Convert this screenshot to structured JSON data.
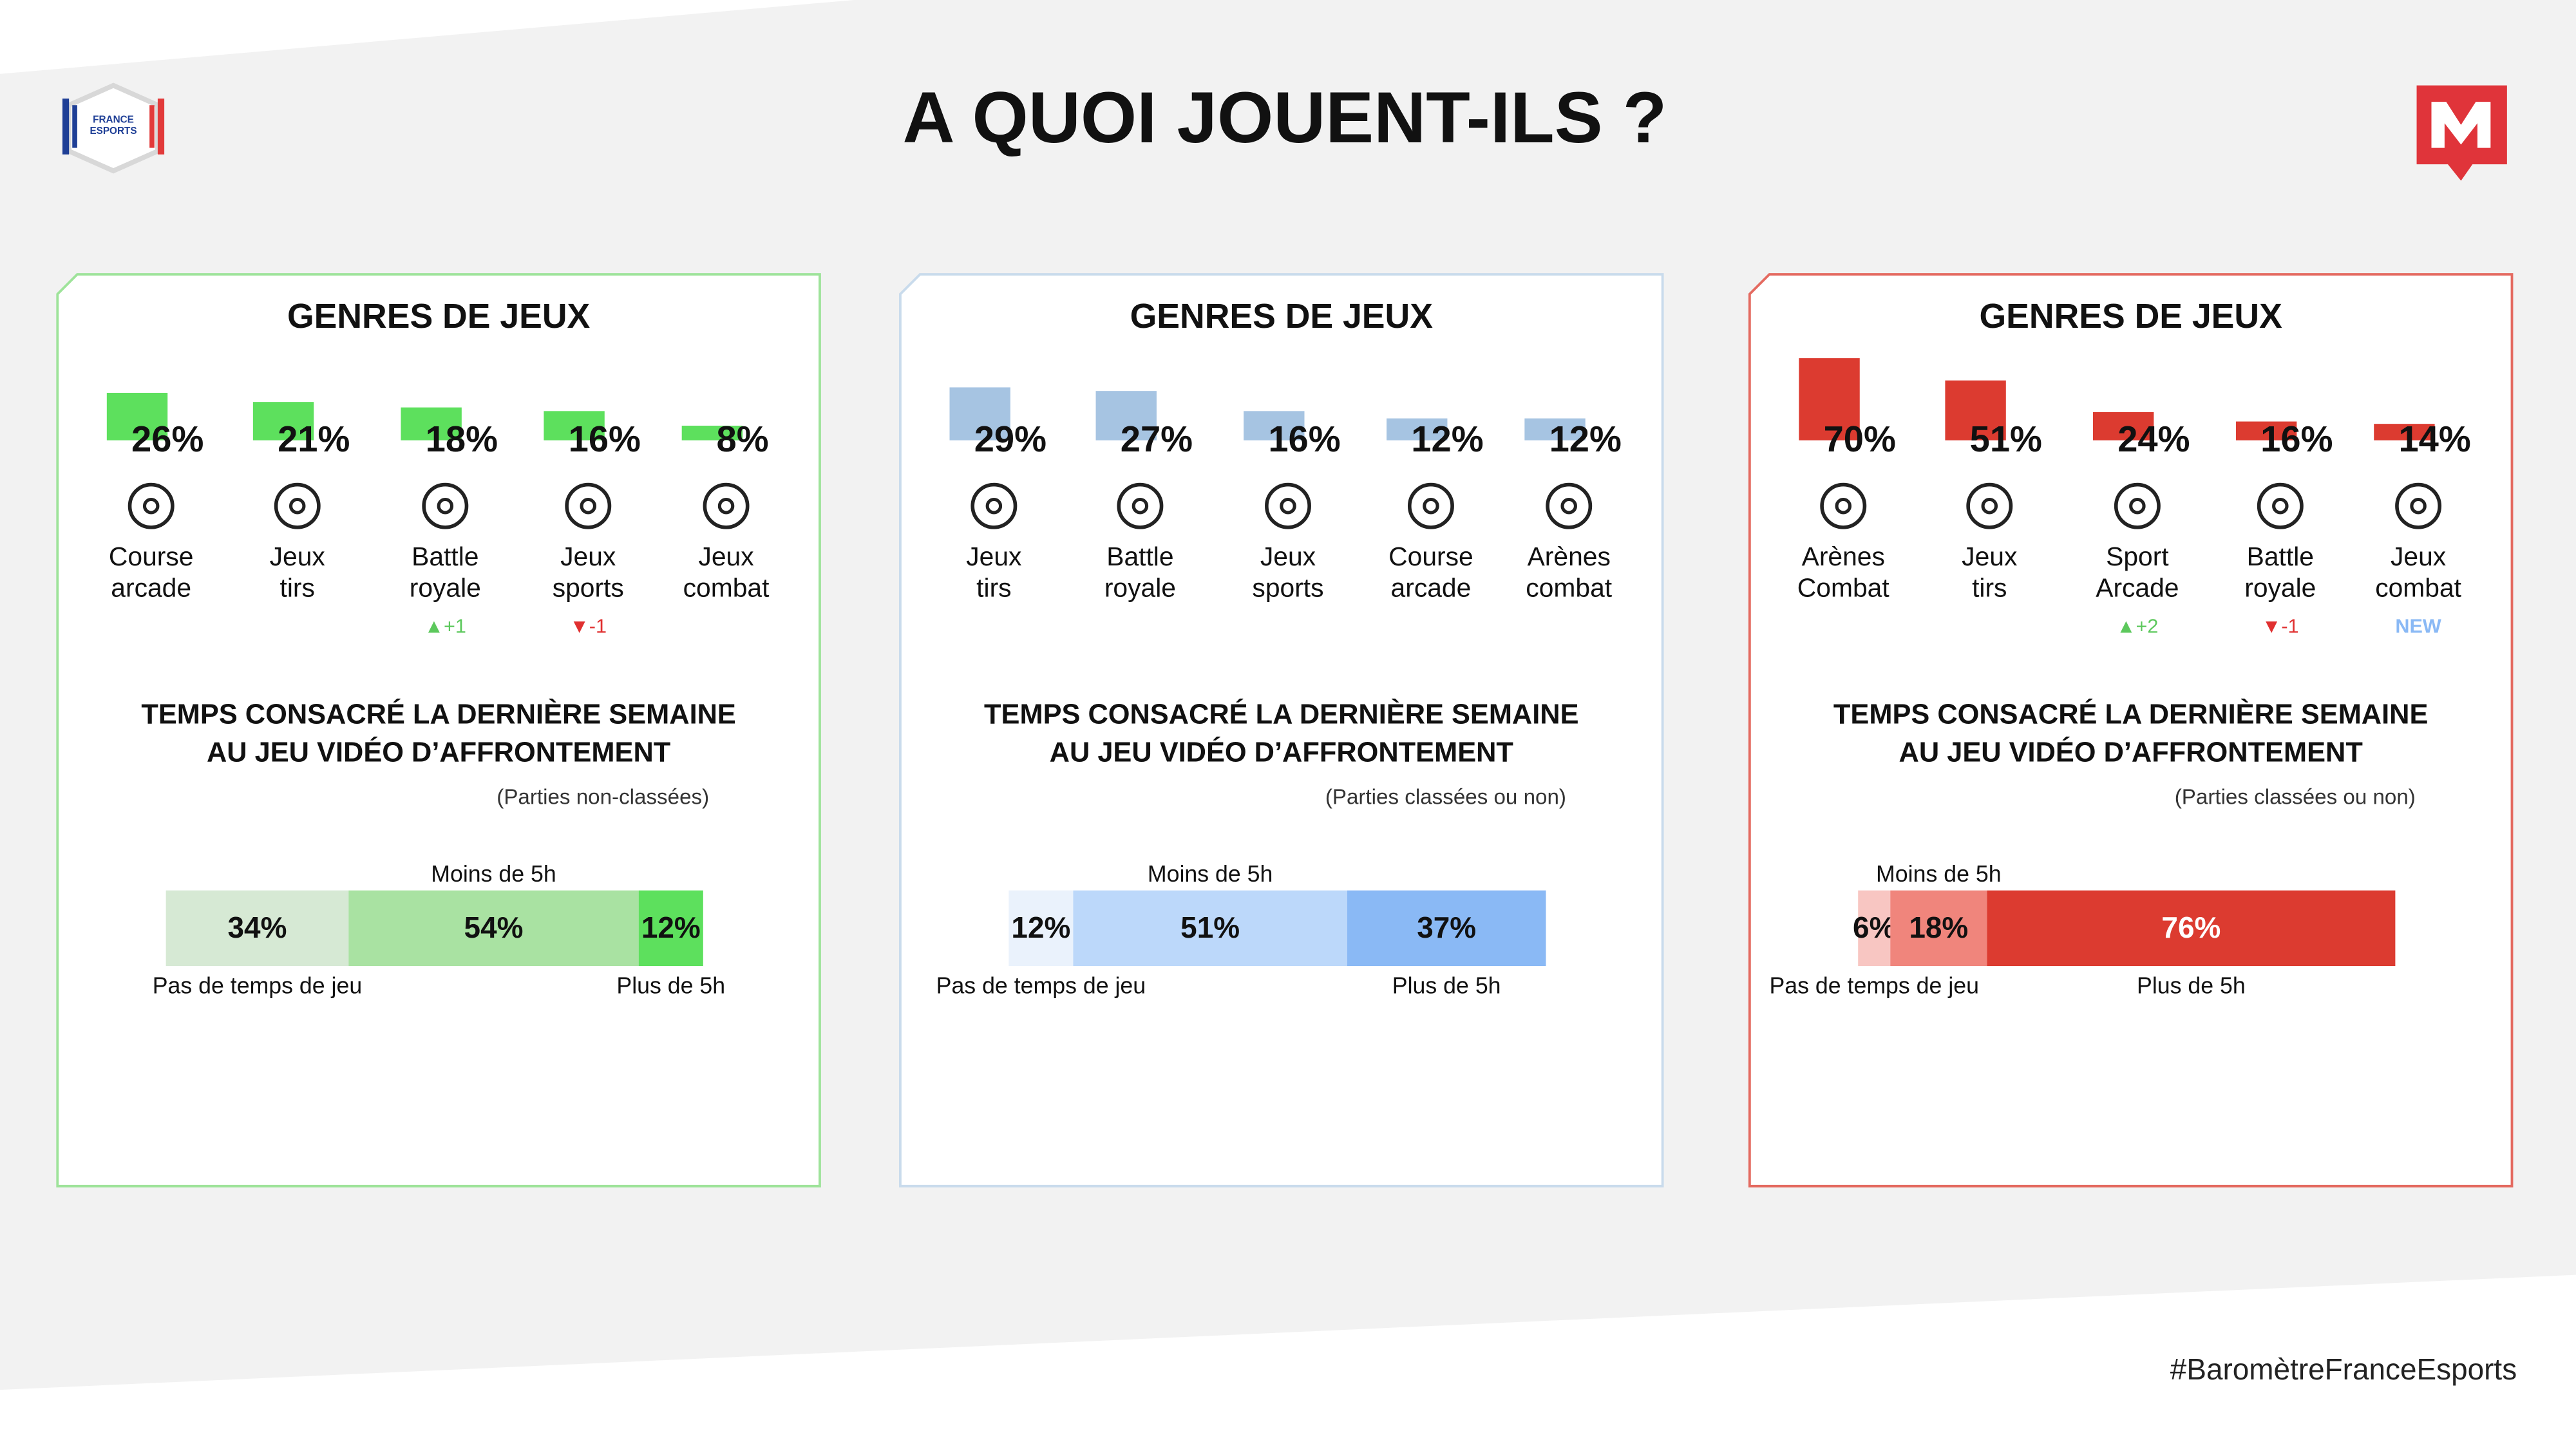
{
  "header": {
    "title": "A QUOI JOUENT-ILS ?",
    "logo_text": [
      "FRANCE",
      "ESPORTS"
    ]
  },
  "panels": [
    {
      "color": "#5de05d",
      "border": "#9ee39a",
      "genres_title": "GENRES DE JEUX",
      "genres": [
        [
          "Course",
          "arcade"
        ],
        [
          "Jeux",
          "tirs"
        ],
        [
          "Battle",
          "royale"
        ],
        [
          "Jeux",
          "sports"
        ],
        [
          "Jeux",
          "combat"
        ]
      ],
      "values": [
        26,
        21,
        18,
        16,
        8
      ],
      "value_labels": [
        "26%",
        "21%",
        "18%",
        "16%",
        "8%"
      ],
      "changes": [
        null,
        null,
        "▲+1",
        "▼-1",
        null
      ],
      "time_title": [
        "TEMPS CONSACRÉ LA DERNIÈRE SEMAINE",
        "AU JEU VIDÉO D’AFFRONTEMENT"
      ],
      "time_note": "(Parties non-classées)",
      "segments": [
        {
          "name": "Pas de temps de jeu",
          "value": 34,
          "label": "34%",
          "color": "#d6e9d4"
        },
        {
          "name": "Moins de 5h",
          "value": 54,
          "label": "54%",
          "color": "#a9e2a2"
        },
        {
          "name": "Plus de 5h",
          "value": 12,
          "label": "12%",
          "color": "#5de05d"
        }
      ]
    },
    {
      "color": "#a6c4e2",
      "border": "#c9dbec",
      "genres_title": "GENRES DE JEUX",
      "genres": [
        [
          "Jeux",
          "tirs"
        ],
        [
          "Battle",
          "royale"
        ],
        [
          "Jeux",
          "sports"
        ],
        [
          "Course",
          "arcade"
        ],
        [
          "Arènes",
          "combat"
        ]
      ],
      "values": [
        29,
        27,
        16,
        12,
        12
      ],
      "value_labels": [
        "29%",
        "27%",
        "16%",
        "12%",
        "12%"
      ],
      "changes": [
        null,
        null,
        null,
        null,
        null
      ],
      "time_title": [
        "TEMPS CONSACRÉ LA DERNIÈRE SEMAINE",
        "AU JEU VIDÉO D’AFFRONTEMENT"
      ],
      "time_note": "(Parties classées ou non)",
      "segments": [
        {
          "name": "Pas de temps de jeu",
          "value": 12,
          "label": "12%",
          "color": "#eaf2fc"
        },
        {
          "name": "Moins de 5h",
          "value": 51,
          "label": "51%",
          "color": "#bcd8fa"
        },
        {
          "name": "Plus de 5h",
          "value": 37,
          "label": "37%",
          "color": "#8ab9f5"
        }
      ]
    },
    {
      "color": "#dc3b30",
      "border": "#e46a60",
      "genres_title": "GENRES DE JEUX",
      "genres": [
        [
          "Arènes",
          "Combat"
        ],
        [
          "Jeux",
          "tirs"
        ],
        [
          "Sport",
          "Arcade"
        ],
        [
          "Battle",
          "royale"
        ],
        [
          "Jeux",
          "combat"
        ]
      ],
      "values": [
        70,
        51,
        24,
        16,
        14
      ],
      "value_labels": [
        "70%",
        "51%",
        "24%",
        "16%",
        "14%"
      ],
      "changes": [
        null,
        null,
        "▲+2",
        "▼-1",
        "NEW"
      ],
      "time_title": [
        "TEMPS CONSACRÉ LA DERNIÈRE SEMAINE",
        "AU JEU VIDÉO D’AFFRONTEMENT"
      ],
      "time_note": "(Parties classées ou non)",
      "segments": [
        {
          "name": "Pas de temps de jeu",
          "value": 6,
          "label": "6%",
          "color": "#f8c6c2"
        },
        {
          "name": "Moins de 5h",
          "value": 18,
          "label": "18%",
          "color": "#f0857c"
        },
        {
          "name": "Plus de 5h",
          "value": 76,
          "label": "76%",
          "color": "#dc3b30"
        }
      ]
    }
  ],
  "footer": "#BaromètreFranceEsports"
}
